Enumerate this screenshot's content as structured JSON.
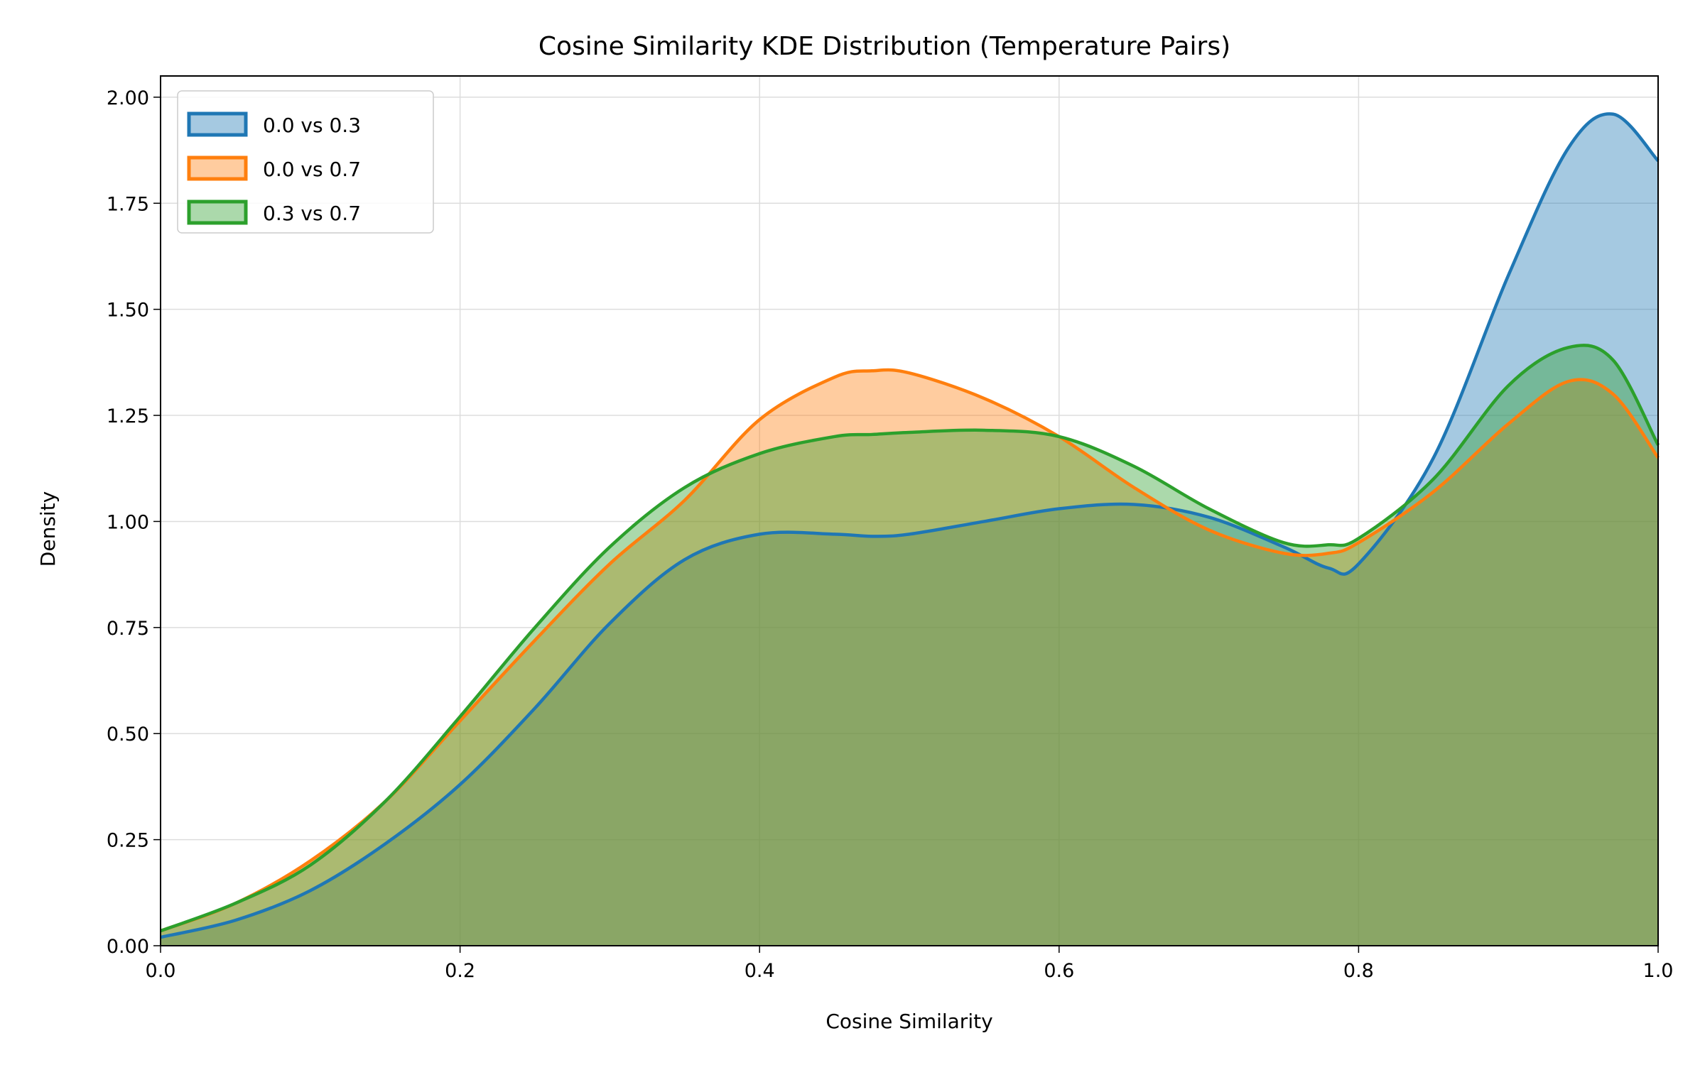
{
  "chart_data": {
    "type": "area",
    "title": "Cosine Similarity KDE Distribution (Temperature Pairs)",
    "xlabel": "Cosine Similarity",
    "ylabel": "Density",
    "xlim": [
      0.0,
      1.0
    ],
    "ylim": [
      0.0,
      2.05
    ],
    "x_ticks": [
      "0.0",
      "0.2",
      "0.4",
      "0.6",
      "0.8",
      "1.0"
    ],
    "y_ticks": [
      "0.00",
      "0.25",
      "0.50",
      "0.75",
      "1.00",
      "1.25",
      "1.50",
      "1.75",
      "2.00"
    ],
    "grid": true,
    "legend_position": "top-left",
    "x": [
      0.0,
      0.05,
      0.1,
      0.15,
      0.2,
      0.25,
      0.3,
      0.35,
      0.4,
      0.45,
      0.475,
      0.5,
      0.55,
      0.6,
      0.65,
      0.7,
      0.75,
      0.78,
      0.8,
      0.85,
      0.9,
      0.94,
      0.97,
      1.0
    ],
    "series": [
      {
        "name": "0.0 vs 0.3",
        "color": "#1f77b4",
        "values": [
          0.02,
          0.06,
          0.13,
          0.24,
          0.38,
          0.56,
          0.76,
          0.91,
          0.97,
          0.97,
          0.965,
          0.97,
          1.0,
          1.03,
          1.04,
          1.01,
          0.94,
          0.89,
          0.9,
          1.15,
          1.58,
          1.88,
          1.96,
          1.85
        ]
      },
      {
        "name": "0.0 vs 0.7",
        "color": "#ff7f0e",
        "values": [
          0.035,
          0.1,
          0.2,
          0.34,
          0.53,
          0.72,
          0.9,
          1.05,
          1.24,
          1.34,
          1.355,
          1.35,
          1.29,
          1.2,
          1.08,
          0.98,
          0.925,
          0.925,
          0.95,
          1.07,
          1.23,
          1.33,
          1.3,
          1.15
        ]
      },
      {
        "name": "0.3 vs 0.7",
        "color": "#2ca02c",
        "values": [
          0.035,
          0.1,
          0.19,
          0.34,
          0.54,
          0.75,
          0.94,
          1.08,
          1.16,
          1.2,
          1.205,
          1.21,
          1.215,
          1.2,
          1.13,
          1.03,
          0.95,
          0.945,
          0.96,
          1.1,
          1.32,
          1.41,
          1.38,
          1.18
        ]
      }
    ]
  }
}
